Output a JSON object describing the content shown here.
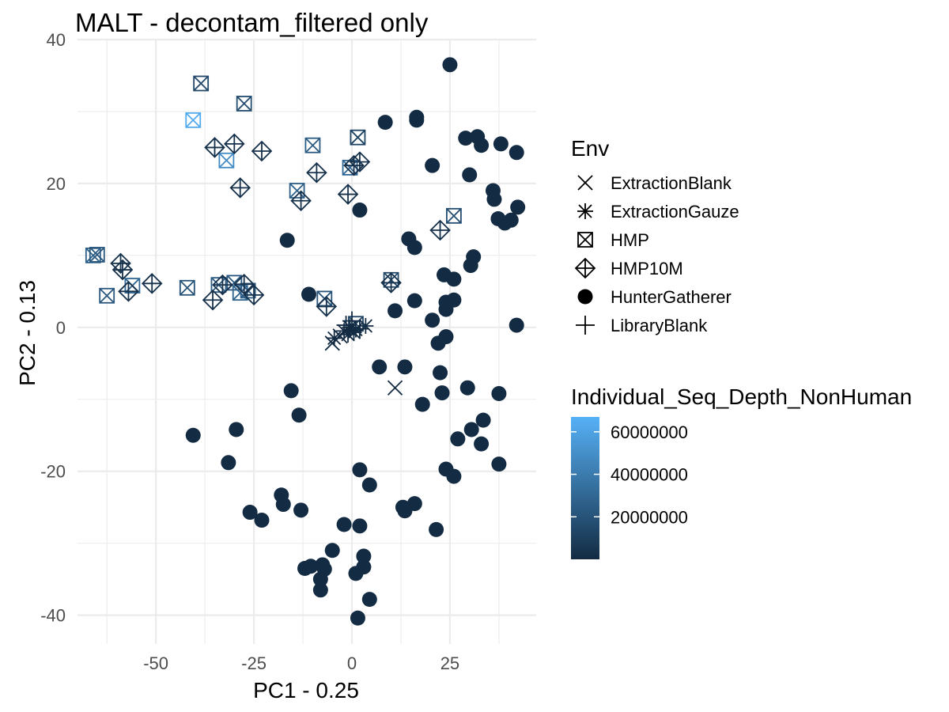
{
  "chart_data": {
    "type": "scatter",
    "title": "MALT - decontam_filtered only",
    "xlabel": "PC1 - 0.25",
    "ylabel": "PC2 - 0.13",
    "xlim": [
      -70,
      47
    ],
    "ylim": [
      -44,
      40
    ],
    "x_ticks": [
      -50,
      -25,
      0,
      25
    ],
    "x_tick_labels": [
      "-50",
      "-25",
      "0",
      "25"
    ],
    "y_ticks": [
      -40,
      -20,
      0,
      20,
      40
    ],
    "y_tick_labels": [
      "-40",
      "-20",
      "0",
      "20",
      "40"
    ],
    "grid": true,
    "theme": "minimal",
    "shape_legend": {
      "title": "Env",
      "position": "right",
      "items": [
        {
          "label": "ExtractionBlank",
          "shape": "x"
        },
        {
          "label": "ExtractionGauze",
          "shape": "asterisk"
        },
        {
          "label": "HMP",
          "shape": "square-cross"
        },
        {
          "label": "HMP10M",
          "shape": "diamond-plus"
        },
        {
          "label": "HunterGatherer",
          "shape": "filled-circle"
        },
        {
          "label": "LibraryBlank",
          "shape": "plus"
        }
      ]
    },
    "color_legend": {
      "title": "Individual_Seq_Depth_NonHuman",
      "position": "right",
      "min": 0,
      "max": 67000000,
      "breaks": [
        20000000,
        40000000,
        60000000
      ],
      "break_labels": [
        "20000000",
        "40000000",
        "60000000"
      ],
      "low_color": "#132b43",
      "high_color": "#56b1f7"
    },
    "series": [
      {
        "name": "HunterGatherer",
        "shape": "filled-circle",
        "points": [
          {
            "x": 25,
            "y": 36.5,
            "c": 0
          },
          {
            "x": 8.5,
            "y": 28.5,
            "c": 0
          },
          {
            "x": 16.5,
            "y": 29.2,
            "c": 0
          },
          {
            "x": 16.5,
            "y": 28.8,
            "c": 0
          },
          {
            "x": 29,
            "y": 26.3,
            "c": 0
          },
          {
            "x": 32,
            "y": 26.5,
            "c": 0
          },
          {
            "x": 33,
            "y": 25.3,
            "c": 0
          },
          {
            "x": 38,
            "y": 25.5,
            "c": 0
          },
          {
            "x": 42,
            "y": 24.3,
            "c": 0
          },
          {
            "x": 20.5,
            "y": 22.5,
            "c": 0
          },
          {
            "x": 30,
            "y": 21.2,
            "c": 0
          },
          {
            "x": 36,
            "y": 19,
            "c": 0
          },
          {
            "x": 36.3,
            "y": 17.8,
            "c": 0
          },
          {
            "x": 2,
            "y": 16.3,
            "c": 0
          },
          {
            "x": 42.3,
            "y": 16.7,
            "c": 0
          },
          {
            "x": 37.3,
            "y": 15.1,
            "c": 0
          },
          {
            "x": 39,
            "y": 14.5,
            "c": 0
          },
          {
            "x": 40.6,
            "y": 14.9,
            "c": 0
          },
          {
            "x": -16.5,
            "y": 12.1,
            "c": 0
          },
          {
            "x": 14.5,
            "y": 12.3,
            "c": 0
          },
          {
            "x": 16,
            "y": 11.1,
            "c": 0
          },
          {
            "x": 31,
            "y": 9.8,
            "c": 0
          },
          {
            "x": 30.3,
            "y": 8.6,
            "c": 0
          },
          {
            "x": 23.5,
            "y": 7.3,
            "c": 0
          },
          {
            "x": 26,
            "y": 6.7,
            "c": 0
          },
          {
            "x": -11,
            "y": 4.6,
            "c": 0
          },
          {
            "x": 16,
            "y": 3.7,
            "c": 0
          },
          {
            "x": 24,
            "y": 3.5,
            "c": 0
          },
          {
            "x": 26,
            "y": 3.8,
            "c": 0
          },
          {
            "x": 11,
            "y": 2.3,
            "c": 0
          },
          {
            "x": 24,
            "y": 2.5,
            "c": 0
          },
          {
            "x": 20.5,
            "y": 1,
            "c": 0
          },
          {
            "x": 42,
            "y": 0.3,
            "c": 0
          },
          {
            "x": 24,
            "y": -1.3,
            "c": 0
          },
          {
            "x": 22,
            "y": -2.2,
            "c": 0
          },
          {
            "x": 7,
            "y": -5.5,
            "c": 0
          },
          {
            "x": 13.5,
            "y": -5.5,
            "c": 0
          },
          {
            "x": 22.5,
            "y": -6.3,
            "c": 0
          },
          {
            "x": -15.5,
            "y": -8.8,
            "c": 0
          },
          {
            "x": 23,
            "y": -9.1,
            "c": 0
          },
          {
            "x": 29.5,
            "y": -8.4,
            "c": 0
          },
          {
            "x": 37.5,
            "y": -9.2,
            "c": 0
          },
          {
            "x": 18,
            "y": -10.7,
            "c": 0
          },
          {
            "x": -13.5,
            "y": -12.2,
            "c": 0
          },
          {
            "x": 33.5,
            "y": -12.9,
            "c": 0
          },
          {
            "x": 30.5,
            "y": -14.2,
            "c": 0
          },
          {
            "x": -29.5,
            "y": -14.2,
            "c": 0
          },
          {
            "x": -40.5,
            "y": -15,
            "c": 0
          },
          {
            "x": 27,
            "y": -15.5,
            "c": 0
          },
          {
            "x": 33,
            "y": -16.2,
            "c": 0
          },
          {
            "x": -31.5,
            "y": -18.8,
            "c": 0
          },
          {
            "x": 37.5,
            "y": -19,
            "c": 0
          },
          {
            "x": 2,
            "y": -19.8,
            "c": 0
          },
          {
            "x": 24,
            "y": -19.7,
            "c": 0
          },
          {
            "x": 26,
            "y": -20.7,
            "c": 0
          },
          {
            "x": 4.5,
            "y": -21.9,
            "c": 0
          },
          {
            "x": -18,
            "y": -23.3,
            "c": 0
          },
          {
            "x": -17.5,
            "y": -24.6,
            "c": 0
          },
          {
            "x": 16,
            "y": -24.5,
            "c": 0
          },
          {
            "x": 13,
            "y": -25,
            "c": 0
          },
          {
            "x": 13.5,
            "y": -25.5,
            "c": 0
          },
          {
            "x": -26,
            "y": -25.7,
            "c": 0
          },
          {
            "x": -13,
            "y": -25.4,
            "c": 0
          },
          {
            "x": -23,
            "y": -26.8,
            "c": 0
          },
          {
            "x": -2,
            "y": -27.4,
            "c": 0
          },
          {
            "x": 2,
            "y": -27.6,
            "c": 0
          },
          {
            "x": 21.5,
            "y": -28.1,
            "c": 0
          },
          {
            "x": -5,
            "y": -31,
            "c": 0
          },
          {
            "x": 3,
            "y": -31.8,
            "c": 0
          },
          {
            "x": -12,
            "y": -33.5,
            "c": 0
          },
          {
            "x": -10.5,
            "y": -33.2,
            "c": 0
          },
          {
            "x": -7.5,
            "y": -33,
            "c": 0
          },
          {
            "x": -7,
            "y": -33.6,
            "c": 0
          },
          {
            "x": 3,
            "y": -33.3,
            "c": 0
          },
          {
            "x": 1,
            "y": -34.2,
            "c": 0
          },
          {
            "x": -8,
            "y": -35,
            "c": 0
          },
          {
            "x": -8,
            "y": -36.5,
            "c": 0
          },
          {
            "x": 4.5,
            "y": -37.8,
            "c": 0
          },
          {
            "x": 1.5,
            "y": -40.4,
            "c": 0
          }
        ]
      },
      {
        "name": "HMP",
        "shape": "square-cross",
        "points": [
          {
            "x": -38.5,
            "y": 33.9,
            "c": 14000000
          },
          {
            "x": -27.5,
            "y": 31.1,
            "c": 17000000
          },
          {
            "x": -40.5,
            "y": 28.8,
            "c": 64000000
          },
          {
            "x": 1.5,
            "y": 26.4,
            "c": 12000000
          },
          {
            "x": -10,
            "y": 25.3,
            "c": 24000000
          },
          {
            "x": -32,
            "y": 23.2,
            "c": 48000000
          },
          {
            "x": -0.5,
            "y": 22.2,
            "c": 30000000
          },
          {
            "x": -14,
            "y": 19,
            "c": 26000000
          },
          {
            "x": 26,
            "y": 15.5,
            "c": 17000000
          },
          {
            "x": -66,
            "y": 10,
            "c": 26000000
          },
          {
            "x": -65,
            "y": 10.1,
            "c": 22000000
          },
          {
            "x": 10,
            "y": 6.6,
            "c": 14000000
          },
          {
            "x": -56,
            "y": 5.8,
            "c": 30000000
          },
          {
            "x": -34,
            "y": 5.9,
            "c": 24000000
          },
          {
            "x": -30,
            "y": 6.2,
            "c": 22000000
          },
          {
            "x": -42,
            "y": 5.5,
            "c": 20000000
          },
          {
            "x": -62.5,
            "y": 4.4,
            "c": 22000000
          },
          {
            "x": -28.5,
            "y": 4.8,
            "c": 28000000
          },
          {
            "x": -26.5,
            "y": 5.1,
            "c": 24000000
          },
          {
            "x": -7,
            "y": 4,
            "c": 20000000
          },
          {
            "x": 1,
            "y": 0.5,
            "c": 12000000
          }
        ]
      },
      {
        "name": "HMP10M",
        "shape": "diamond-plus",
        "points": [
          {
            "x": -35,
            "y": 25,
            "c": 3000000
          },
          {
            "x": -30,
            "y": 25.5,
            "c": 3000000
          },
          {
            "x": -23,
            "y": 24.5,
            "c": 3000000
          },
          {
            "x": 2,
            "y": 23,
            "c": 3000000
          },
          {
            "x": 0.5,
            "y": 22.5,
            "c": 3000000
          },
          {
            "x": -9,
            "y": 21.5,
            "c": 3000000
          },
          {
            "x": -28.5,
            "y": 19.4,
            "c": 3000000
          },
          {
            "x": -1,
            "y": 18.5,
            "c": 3000000
          },
          {
            "x": -13,
            "y": 17.6,
            "c": 3000000
          },
          {
            "x": 22.5,
            "y": 13.5,
            "c": 3000000
          },
          {
            "x": -59,
            "y": 8.9,
            "c": 3000000
          },
          {
            "x": -58.5,
            "y": 8,
            "c": 3000000
          },
          {
            "x": -51,
            "y": 6.1,
            "c": 3000000
          },
          {
            "x": 10,
            "y": 6.2,
            "c": 3000000
          },
          {
            "x": -33,
            "y": 5.9,
            "c": 3000000
          },
          {
            "x": -27.5,
            "y": 6,
            "c": 3000000
          },
          {
            "x": -57,
            "y": 5,
            "c": 3000000
          },
          {
            "x": -25,
            "y": 4.5,
            "c": 3000000
          },
          {
            "x": -35.5,
            "y": 3.8,
            "c": 3000000
          },
          {
            "x": -6.5,
            "y": 2.9,
            "c": 3000000
          }
        ]
      },
      {
        "name": "ExtractionBlank",
        "shape": "x",
        "points": [
          {
            "x": 11,
            "y": -8.4,
            "c": 0
          },
          {
            "x": -5,
            "y": -2.2,
            "c": 0
          },
          {
            "x": -3,
            "y": -1.2,
            "c": 0
          }
        ]
      },
      {
        "name": "ExtractionGauze",
        "shape": "asterisk",
        "points": [
          {
            "x": -4.5,
            "y": -1.5,
            "c": 0
          },
          {
            "x": -2,
            "y": -0.5,
            "c": 0
          },
          {
            "x": -1,
            "y": -1,
            "c": 0
          },
          {
            "x": 1,
            "y": -0.3,
            "c": 0
          },
          {
            "x": 3.5,
            "y": 0.2,
            "c": 0
          },
          {
            "x": -0.5,
            "y": 0,
            "c": 0
          },
          {
            "x": 0.5,
            "y": -0.7,
            "c": 0
          }
        ]
      },
      {
        "name": "LibraryBlank",
        "shape": "plus",
        "points": [
          {
            "x": 0,
            "y": 0.9,
            "c": 0
          },
          {
            "x": 2,
            "y": -0.2,
            "c": 0
          },
          {
            "x": -1.5,
            "y": 0.3,
            "c": 0
          }
        ]
      }
    ]
  }
}
